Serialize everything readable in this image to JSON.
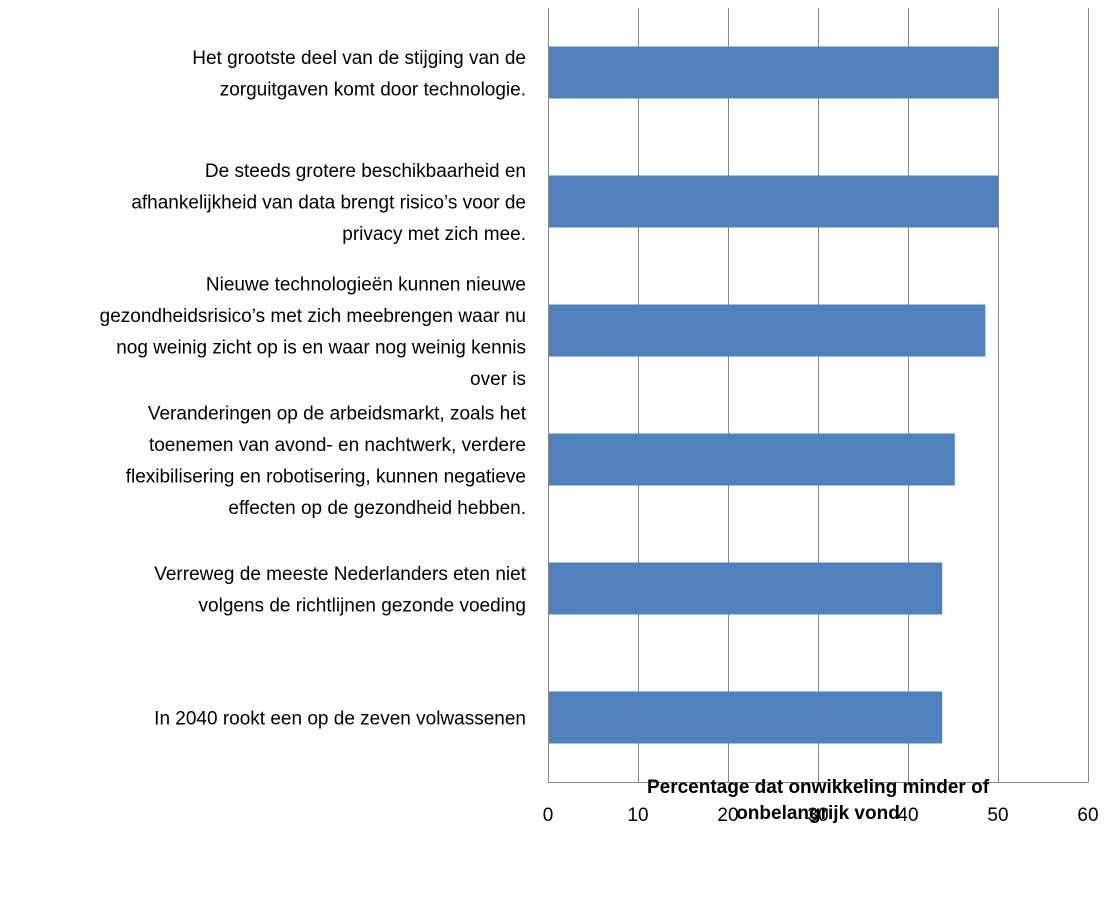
{
  "chart_data": {
    "type": "bar",
    "orientation": "horizontal",
    "title": "",
    "xlabel_lines": [
      "Percentage dat onwikkeling minder of",
      "onbelangrijk vond"
    ],
    "ylabel": "",
    "xlim": [
      0,
      60
    ],
    "x_ticks": [
      "0",
      "10",
      "20",
      "30",
      "40",
      "50",
      "60"
    ],
    "grid": "vertical",
    "bar_color": "#4f81bd",
    "categories": [
      [
        "Het grootste deel van de stijging van de",
        "zorguitgaven komt door technologie."
      ],
      [
        "De steeds grotere beschikbaarheid en",
        "afhankelijkheid van data brengt risico’s voor de",
        "privacy met zich mee."
      ],
      [
        "Nieuwe technologieën kunnen nieuwe",
        "gezondheidsrisico’s met zich meebrengen waar nu",
        "nog weinig zicht op is en waar nog weinig kennis",
        "over is"
      ],
      [
        "Veranderingen op de arbeidsmarkt, zoals het",
        "toenemen van avond- en nachtwerk, verdere",
        "flexibilisering en robotisering, kunnen negatieve",
        "effecten op de gezondheid hebben."
      ],
      [
        "Verreweg de meeste Nederlanders eten niet",
        "volgens de richtlijnen gezonde voeding"
      ],
      [
        "In 2040 rookt een op de zeven volwassenen"
      ]
    ],
    "values": [
      50,
      50,
      48.6,
      45.2,
      43.8,
      43.8
    ]
  }
}
